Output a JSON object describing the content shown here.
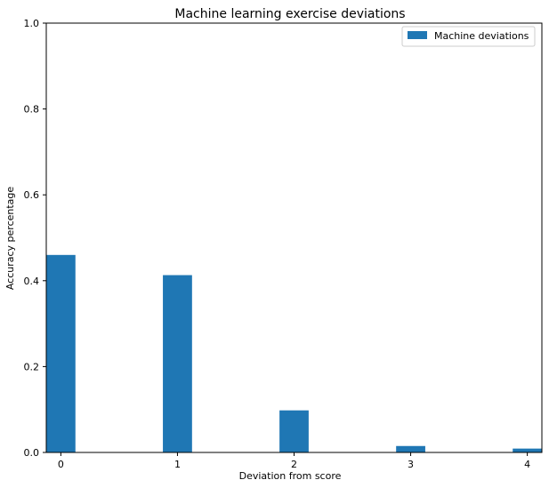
{
  "chart_data": {
    "type": "bar",
    "title": "Machine learning exercise deviations",
    "xlabel": "Deviation from score",
    "ylabel": "Accuracy percentage",
    "categories": [
      "0",
      "1",
      "2",
      "3",
      "4"
    ],
    "x_values": [
      0,
      1,
      2,
      3,
      4
    ],
    "series": [
      {
        "name": "Machine deviations",
        "color": "#1f77b4",
        "values": [
          0.46,
          0.413,
          0.098,
          0.015,
          0.009
        ]
      }
    ],
    "ylim": [
      0,
      1.0
    ],
    "xlim": [
      -0.125,
      4.125
    ],
    "yticks": [
      "0.0",
      "0.2",
      "0.4",
      "0.6",
      "0.8",
      "1.0"
    ],
    "legend_position": "top-right",
    "grid": false
  }
}
